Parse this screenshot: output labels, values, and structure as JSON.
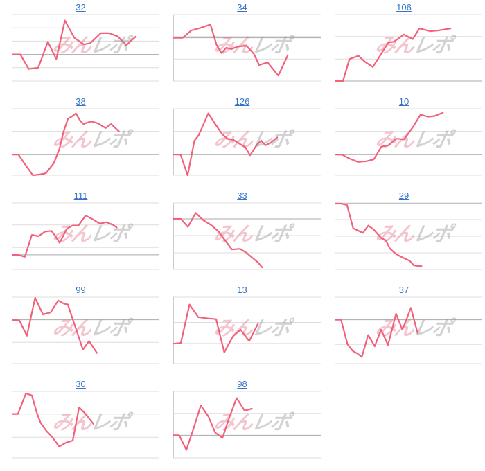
{
  "page": {
    "background": "#ffffff"
  },
  "colors": {
    "line": "#f2607a",
    "link": "#3674c9",
    "grid_light": "#dddddd",
    "grid_dark": "#a9a9a9",
    "axis": "#cccccc",
    "watermark_pink": "#e06a80",
    "watermark_gray": "#8c8c8c"
  },
  "watermark": {
    "text_pink": "みん",
    "text_gray": "レポ"
  },
  "chart_data": [
    {
      "type": "line",
      "title": "32",
      "ylim": [
        0,
        100
      ],
      "legend": "none",
      "xlabel": "",
      "ylabel": "",
      "gridlines": [
        0,
        20,
        40,
        60,
        80,
        100
      ],
      "baseline": 40,
      "x": [
        0,
        0.063,
        0.125,
        0.195,
        0.266,
        0.328,
        0.391,
        0.461,
        0.531,
        0.578,
        0.656,
        0.719,
        0.781,
        0.844,
        0.914
      ],
      "y": [
        40,
        40,
        18,
        20,
        59,
        33,
        91,
        65,
        55,
        57,
        72,
        72,
        67,
        54,
        67
      ]
    },
    {
      "type": "line",
      "title": "34",
      "ylim": [
        0,
        100
      ],
      "legend": "none",
      "xlabel": "",
      "ylabel": "",
      "gridlines": [
        0,
        33,
        67,
        100
      ],
      "baseline": 65,
      "x": [
        0,
        0.07,
        0.133,
        0.203,
        0.274,
        0.32,
        0.356,
        0.391,
        0.43,
        0.477,
        0.539,
        0.594,
        0.633,
        0.695,
        0.774,
        0.844
      ],
      "y": [
        65,
        65,
        76,
        80,
        85,
        54,
        42,
        50,
        48,
        52,
        53,
        41,
        24,
        28,
        8,
        39
      ]
    },
    {
      "type": "line",
      "title": "106",
      "ylim": [
        0,
        100
      ],
      "legend": "none",
      "xlabel": "",
      "ylabel": "",
      "gridlines": [
        0,
        33,
        67,
        100
      ],
      "baseline": 0,
      "x": [
        0,
        0.061,
        0.109,
        0.175,
        0.223,
        0.281,
        0.396,
        0.436,
        0.51,
        0.575,
        0.624,
        0.706,
        0.763,
        0.853
      ],
      "y": [
        0,
        0,
        33,
        38,
        29,
        21,
        58,
        59,
        70,
        63,
        79,
        75,
        76,
        79
      ]
    },
    {
      "type": "line",
      "title": "38",
      "ylim": [
        0,
        100
      ],
      "legend": "none",
      "xlabel": "",
      "ylabel": "",
      "gridlines": [
        0,
        31,
        66,
        100
      ],
      "baseline": 31,
      "x": [
        0,
        0.049,
        0.106,
        0.155,
        0.203,
        0.252,
        0.309,
        0.35,
        0.382,
        0.414,
        0.447,
        0.472,
        0.504,
        0.528,
        0.585,
        0.634,
        0.691,
        0.732,
        0.789
      ],
      "y": [
        31,
        31,
        14,
        0,
        1,
        3,
        18,
        39,
        66,
        85,
        89,
        93,
        82,
        77,
        81,
        78,
        71,
        77,
        66
      ]
    },
    {
      "type": "line",
      "title": "126",
      "ylim": [
        0,
        100
      ],
      "legend": "none",
      "xlabel": "",
      "ylabel": "",
      "gridlines": [
        0,
        31,
        66,
        100
      ],
      "baseline": 31,
      "x": [
        0,
        0.054,
        0.106,
        0.156,
        0.187,
        0.258,
        0.313,
        0.36,
        0.398,
        0.445,
        0.484,
        0.531,
        0.566,
        0.617,
        0.648,
        0.679,
        0.719,
        0.766
      ],
      "y": [
        31,
        31,
        0,
        52,
        60,
        93,
        76,
        62,
        55,
        53,
        48,
        42,
        30,
        46,
        52,
        45,
        49,
        57
      ]
    },
    {
      "type": "line",
      "title": "10",
      "ylim": [
        0,
        100
      ],
      "legend": "none",
      "xlabel": "",
      "ylabel": "",
      "gridlines": [
        0,
        31,
        66,
        100
      ],
      "baseline": 31,
      "x": [
        0,
        0.054,
        0.11,
        0.172,
        0.234,
        0.289,
        0.344,
        0.398,
        0.453,
        0.512,
        0.578,
        0.633,
        0.688,
        0.734,
        0.797
      ],
      "y": [
        31,
        31,
        25,
        20,
        21,
        24,
        43,
        45,
        55,
        54,
        73,
        91,
        88,
        89,
        94
      ]
    },
    {
      "type": "line",
      "title": "111",
      "ylim": [
        0,
        100
      ],
      "legend": "none",
      "xlabel": "",
      "ylabel": "",
      "gridlines": [
        0,
        33,
        67,
        100
      ],
      "baseline": 22,
      "x": [
        0,
        0.048,
        0.096,
        0.148,
        0.197,
        0.245,
        0.293,
        0.325,
        0.352,
        0.405,
        0.448,
        0.491,
        0.544,
        0.6,
        0.648,
        0.696,
        0.747,
        0.773
      ],
      "y": [
        22,
        22,
        19,
        52,
        50,
        57,
        58,
        49,
        40,
        61,
        66,
        66,
        81,
        75,
        69,
        71,
        67,
        63
      ]
    },
    {
      "type": "line",
      "title": "33",
      "ylim": [
        0,
        100
      ],
      "legend": "none",
      "xlabel": "",
      "ylabel": "",
      "gridlines": [
        0,
        25,
        51,
        76,
        100
      ],
      "baseline": 76,
      "x": [
        0,
        0.056,
        0.108,
        0.166,
        0.222,
        0.278,
        0.334,
        0.381,
        0.432,
        0.492,
        0.54,
        0.58,
        0.627,
        0.656
      ],
      "y": [
        76,
        76,
        64,
        85,
        74,
        67,
        57,
        44,
        30,
        31,
        25,
        18,
        10,
        3
      ]
    },
    {
      "type": "line",
      "title": "29",
      "ylim": [
        0,
        100
      ],
      "legend": "none",
      "xlabel": "",
      "ylabel": "",
      "gridlines": [
        0,
        25,
        50,
        75,
        100
      ],
      "baseline": 99,
      "x": [
        0,
        0.048,
        0.091,
        0.136,
        0.176,
        0.208,
        0.248,
        0.288,
        0.344,
        0.376,
        0.408,
        0.448,
        0.48,
        0.512,
        0.552,
        0.584,
        0.624,
        0.64
      ],
      "y": [
        99,
        99,
        97,
        62,
        58,
        55,
        66,
        60,
        47,
        44,
        31,
        24,
        20,
        17,
        13,
        6,
        5,
        5
      ]
    },
    {
      "type": "line",
      "title": "99",
      "ylim": [
        0,
        100
      ],
      "legend": "none",
      "xlabel": "",
      "ylabel": "",
      "gridlines": [
        0,
        32,
        66,
        100
      ],
      "baseline": 66,
      "x": [
        0,
        0.056,
        0.111,
        0.172,
        0.23,
        0.286,
        0.342,
        0.386,
        0.413,
        0.524,
        0.569,
        0.627
      ],
      "y": [
        66,
        65,
        42,
        99,
        74,
        77,
        95,
        90,
        89,
        21,
        34,
        16
      ]
    },
    {
      "type": "line",
      "title": "13",
      "ylim": [
        0,
        100
      ],
      "legend": "none",
      "xlabel": "",
      "ylabel": "",
      "gridlines": [
        0,
        30,
        62,
        100
      ],
      "baseline": 30,
      "x": [
        0,
        0.056,
        0.12,
        0.184,
        0.256,
        0.316,
        0.376,
        0.44,
        0.496,
        0.56,
        0.624
      ],
      "y": [
        30,
        31,
        89,
        70,
        68,
        67,
        17,
        41,
        51,
        34,
        60
      ]
    },
    {
      "type": "line",
      "title": "37",
      "ylim": [
        0,
        100
      ],
      "legend": "none",
      "xlabel": "",
      "ylabel": "",
      "gridlines": [
        0,
        29,
        66,
        100
      ],
      "baseline": 66,
      "x": [
        0,
        0.047,
        0.095,
        0.134,
        0.169,
        0.2,
        0.247,
        0.295,
        0.342,
        0.393,
        0.452,
        0.499,
        0.562,
        0.611
      ],
      "y": [
        66,
        66,
        29,
        19,
        15,
        10,
        43,
        26,
        51,
        28,
        75,
        51,
        84,
        46
      ]
    },
    {
      "type": "line",
      "title": "30",
      "ylim": [
        0,
        100
      ],
      "legend": "none",
      "xlabel": "",
      "ylabel": "",
      "gridlines": [
        0,
        31,
        66,
        100
      ],
      "baseline": 66,
      "x": [
        0,
        0.045,
        0.104,
        0.148,
        0.184,
        0.212,
        0.253,
        0.299,
        0.349,
        0.4,
        0.449,
        0.496,
        0.544,
        0.601
      ],
      "y": [
        66,
        66,
        97,
        94,
        68,
        53,
        41,
        31,
        17,
        23,
        26,
        76,
        66,
        51
      ]
    },
    {
      "type": "line",
      "title": "98",
      "ylim": [
        0,
        100
      ],
      "legend": "none",
      "xlabel": "",
      "ylabel": "",
      "gridlines": [
        0,
        34,
        67,
        100
      ],
      "baseline": 34,
      "x": [
        0,
        0.044,
        0.097,
        0.151,
        0.203,
        0.26,
        0.309,
        0.363,
        0.414,
        0.467,
        0.526,
        0.58
      ],
      "y": [
        34,
        34,
        12,
        45,
        79,
        62,
        38,
        30,
        61,
        90,
        71,
        74
      ]
    }
  ]
}
